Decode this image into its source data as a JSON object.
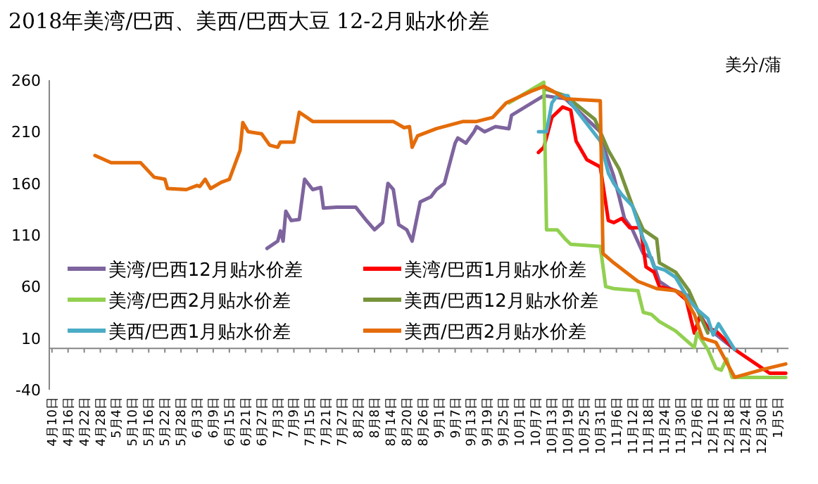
{
  "chart_data": {
    "type": "line",
    "title": "2018年美湾/巴西、美西/巴西大豆 12-2月贴水价差",
    "ylabel": "美分/蒲",
    "xlim": [
      "2018-04-09",
      "2019-01-09"
    ],
    "ylim": [
      -40,
      260
    ],
    "yticks": [
      -40,
      10,
      60,
      110,
      160,
      210,
      260
    ],
    "xticks": [
      {
        "value": "2018-04-10",
        "label": "4月10日"
      },
      {
        "value": "2018-04-16",
        "label": "4月16日"
      },
      {
        "value": "2018-04-22",
        "label": "4月22日"
      },
      {
        "value": "2018-04-28",
        "label": "4月28日"
      },
      {
        "value": "2018-05-04",
        "label": "5月4日"
      },
      {
        "value": "2018-05-10",
        "label": "5月10日"
      },
      {
        "value": "2018-05-16",
        "label": "5月16日"
      },
      {
        "value": "2018-05-22",
        "label": "5月22日"
      },
      {
        "value": "2018-05-28",
        "label": "5月28日"
      },
      {
        "value": "2018-06-03",
        "label": "6月3日"
      },
      {
        "value": "2018-06-09",
        "label": "6月9日"
      },
      {
        "value": "2018-06-15",
        "label": "6月15日"
      },
      {
        "value": "2018-06-21",
        "label": "6月21日"
      },
      {
        "value": "2018-06-27",
        "label": "6月27日"
      },
      {
        "value": "2018-07-03",
        "label": "7月3日"
      },
      {
        "value": "2018-07-09",
        "label": "7月9日"
      },
      {
        "value": "2018-07-15",
        "label": "7月15日"
      },
      {
        "value": "2018-07-21",
        "label": "7月21日"
      },
      {
        "value": "2018-07-27",
        "label": "7月27日"
      },
      {
        "value": "2018-08-02",
        "label": "8月2日"
      },
      {
        "value": "2018-08-08",
        "label": "8月8日"
      },
      {
        "value": "2018-08-14",
        "label": "8月14日"
      },
      {
        "value": "2018-08-20",
        "label": "8月20日"
      },
      {
        "value": "2018-08-26",
        "label": "8月26日"
      },
      {
        "value": "2018-09-01",
        "label": "9月1日"
      },
      {
        "value": "2018-09-07",
        "label": "9月7日"
      },
      {
        "value": "2018-09-13",
        "label": "9月13日"
      },
      {
        "value": "2018-09-19",
        "label": "9月19日"
      },
      {
        "value": "2018-09-25",
        "label": "9月25日"
      },
      {
        "value": "2018-10-01",
        "label": "10月1日"
      },
      {
        "value": "2018-10-07",
        "label": "10月7日"
      },
      {
        "value": "2018-10-13",
        "label": "10月13日"
      },
      {
        "value": "2018-10-19",
        "label": "10月19日"
      },
      {
        "value": "2018-10-25",
        "label": "10月25日"
      },
      {
        "value": "2018-10-31",
        "label": "10月31日"
      },
      {
        "value": "2018-11-06",
        "label": "11月6日"
      },
      {
        "value": "2018-11-12",
        "label": "11月12日"
      },
      {
        "value": "2018-11-18",
        "label": "11月18日"
      },
      {
        "value": "2018-11-24",
        "label": "11月24日"
      },
      {
        "value": "2018-11-30",
        "label": "11月30日"
      },
      {
        "value": "2018-12-06",
        "label": "12月6日"
      },
      {
        "value": "2018-12-12",
        "label": "12月12日"
      },
      {
        "value": "2018-12-18",
        "label": "12月18日"
      },
      {
        "value": "2018-12-24",
        "label": "12月24日"
      },
      {
        "value": "2018-12-30",
        "label": "12月30日"
      },
      {
        "value": "2019-01-05",
        "label": "1月5日"
      }
    ],
    "legend": "bottom",
    "grid": false,
    "marker": "none",
    "series": [
      {
        "name": "美湾/巴西12月贴水价差",
        "color": "#7e649e",
        "x": [
          "2018-06-29",
          "2018-07-03",
          "2018-07-04",
          "2018-07-05",
          "2018-07-06",
          "2018-07-08",
          "2018-07-11",
          "2018-07-13",
          "2018-07-16",
          "2018-07-19",
          "2018-07-20",
          "2018-07-25",
          "2018-08-01",
          "2018-08-05",
          "2018-08-08",
          "2018-08-11",
          "2018-08-13",
          "2018-08-15",
          "2018-08-17",
          "2018-08-20",
          "2018-08-22",
          "2018-08-25",
          "2018-08-29",
          "2018-08-31",
          "2018-09-03",
          "2018-09-07",
          "2018-09-08",
          "2018-09-11",
          "2018-09-14",
          "2018-09-15",
          "2018-09-18",
          "2018-09-22",
          "2018-09-27",
          "2018-09-28",
          "2018-10-10",
          "2018-10-18",
          "2018-10-31",
          "2018-11-01",
          "2018-11-05",
          "2018-11-07",
          "2018-11-09",
          "2018-11-12",
          "2018-11-16",
          "2018-11-19",
          "2018-11-22",
          "2018-11-26",
          "2018-12-03",
          "2018-12-10",
          "2018-12-19"
        ],
        "values": [
          97,
          104,
          114,
          104,
          133,
          124,
          125,
          164,
          154,
          156,
          136,
          137,
          137,
          124,
          115,
          122,
          160,
          154,
          120,
          115,
          104,
          142,
          147,
          154,
          160,
          199,
          204,
          199,
          210,
          215,
          210,
          215,
          213,
          226,
          245,
          242,
          210,
          197,
          167,
          147,
          126,
          115,
          92,
          88,
          65,
          58,
          51,
          20,
          1
        ]
      },
      {
        "name": "美湾/巴西1月贴水价差",
        "color": "#ff0000",
        "x": [
          "2018-10-08",
          "2018-10-10",
          "2018-10-13",
          "2018-10-17",
          "2018-10-20",
          "2018-10-22",
          "2018-10-26",
          "2018-10-31",
          "2018-11-03",
          "2018-11-05",
          "2018-11-08",
          "2018-11-11",
          "2018-11-15",
          "2018-11-17",
          "2018-11-20",
          "2018-11-22",
          "2018-11-28",
          "2018-12-02",
          "2018-12-05",
          "2018-12-07",
          "2018-12-10",
          "2018-12-13",
          "2018-12-20",
          "2019-01-02",
          "2019-01-08"
        ],
        "values": [
          190,
          195,
          224,
          234,
          231,
          201,
          183,
          176,
          124,
          122,
          126,
          117,
          117,
          79,
          74,
          60,
          56,
          47,
          15,
          31,
          20,
          17,
          -1,
          -24,
          -24
        ]
      },
      {
        "name": "美湾/巴西2月贴水价差",
        "color": "#92d050",
        "x": [
          "2018-09-27",
          "2018-10-10",
          "2018-10-11",
          "2018-10-15",
          "2018-10-18",
          "2018-10-20",
          "2018-10-31",
          "2018-11-02",
          "2018-11-05",
          "2018-11-14",
          "2018-11-16",
          "2018-11-19",
          "2018-11-22",
          "2018-11-28",
          "2018-12-05",
          "2018-12-06",
          "2018-12-10",
          "2018-12-13",
          "2018-12-15",
          "2018-12-17",
          "2018-12-19",
          "2018-12-31",
          "2019-01-08"
        ],
        "values": [
          238,
          258,
          115,
          115,
          106,
          101,
          99,
          60,
          58,
          56,
          35,
          33,
          26,
          17,
          1,
          15,
          -1,
          -19,
          -21,
          -10,
          -28,
          -28,
          -28
        ]
      },
      {
        "name": "美西/巴西12月贴水价差",
        "color": "#77933c",
        "x": [
          "2018-10-11",
          "2018-10-18",
          "2018-10-29",
          "2018-11-03",
          "2018-11-07",
          "2018-11-12",
          "2018-11-16",
          "2018-11-21",
          "2018-11-22",
          "2018-11-28",
          "2018-12-03",
          "2018-12-10"
        ],
        "values": [
          251,
          245,
          222,
          192,
          174,
          138,
          115,
          106,
          83,
          74,
          56,
          15
        ]
      },
      {
        "name": "美西/巴西1月贴水价差",
        "color": "#4bacc6",
        "x": [
          "2018-10-08",
          "2018-10-11",
          "2018-10-13",
          "2018-10-15",
          "2018-10-19",
          "2018-10-20",
          "2018-10-31",
          "2018-11-03",
          "2018-11-05",
          "2018-11-08",
          "2018-11-12",
          "2018-11-16",
          "2018-11-17",
          "2018-11-20",
          "2018-11-24",
          "2018-11-28",
          "2018-12-03",
          "2018-12-06",
          "2018-12-10",
          "2018-12-12",
          "2018-12-14",
          "2018-12-20"
        ],
        "values": [
          210,
          210,
          238,
          245,
          245,
          238,
          201,
          170,
          160,
          149,
          138,
          106,
          101,
          79,
          76,
          69,
          47,
          38,
          29,
          13,
          24,
          -1
        ]
      },
      {
        "name": "美西/巴西2月贴水价差",
        "color": "#e46c0a",
        "x": [
          "2018-04-26",
          "2018-05-02",
          "2018-05-13",
          "2018-05-18",
          "2018-05-22",
          "2018-05-23",
          "2018-05-30",
          "2018-06-03",
          "2018-06-04",
          "2018-06-06",
          "2018-06-08",
          "2018-06-12",
          "2018-06-15",
          "2018-06-19",
          "2018-06-20",
          "2018-06-22",
          "2018-06-27",
          "2018-06-30",
          "2018-07-03",
          "2018-07-04",
          "2018-07-09",
          "2018-07-11",
          "2018-07-16",
          "2018-07-25",
          "2018-08-15",
          "2018-08-19",
          "2018-08-21",
          "2018-08-22",
          "2018-08-24",
          "2018-08-31",
          "2018-09-10",
          "2018-09-15",
          "2018-09-21",
          "2018-09-26",
          "2018-10-05",
          "2018-10-10",
          "2018-10-13",
          "2018-10-18",
          "2018-10-31",
          "2018-11-01",
          "2018-11-05",
          "2018-11-14",
          "2018-11-21",
          "2018-11-28",
          "2018-12-01",
          "2018-12-05",
          "2018-12-08",
          "2018-12-13",
          "2018-12-20",
          "2018-12-31",
          "2019-01-08"
        ],
        "values": [
          187,
          180,
          180,
          166,
          164,
          155,
          154,
          158,
          157,
          164,
          155,
          161,
          164,
          192,
          219,
          210,
          208,
          197,
          195,
          200,
          200,
          229,
          220,
          220,
          220,
          214,
          215,
          195,
          206,
          213,
          220,
          220,
          224,
          238,
          249,
          254,
          250,
          242,
          240,
          92,
          83,
          65,
          58,
          56,
          51,
          33,
          10,
          6,
          -28,
          -20,
          -15
        ]
      }
    ]
  }
}
